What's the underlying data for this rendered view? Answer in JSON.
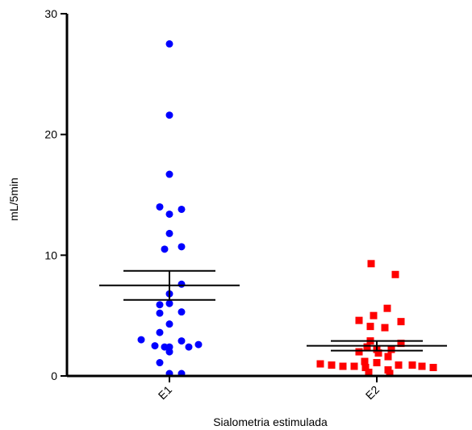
{
  "chart_data": {
    "type": "scatter",
    "xlabel": "Sialometria estimulada",
    "ylabel": "mL/5min",
    "ylim": [
      0,
      30
    ],
    "yticks": [
      0,
      10,
      20,
      30
    ],
    "categories": [
      "E1",
      "E2"
    ],
    "series": [
      {
        "category": "E1",
        "marker": "circle",
        "color": "#0000ff",
        "values": [
          27.5,
          21.6,
          16.7,
          14.0,
          13.8,
          13.4,
          11.8,
          10.7,
          10.5,
          7.6,
          6.8,
          6.0,
          5.9,
          5.3,
          5.2,
          4.3,
          3.6,
          3.0,
          2.9,
          2.6,
          2.5,
          2.4,
          2.4,
          2.4,
          2.0,
          1.1,
          0.2,
          0.2
        ],
        "mean": 7.5,
        "sem_low": 6.3,
        "sem_high": 8.7
      },
      {
        "category": "E2",
        "marker": "square",
        "color": "#ff0000",
        "values": [
          9.3,
          8.4,
          5.6,
          5.0,
          4.6,
          4.5,
          4.1,
          4.0,
          2.9,
          2.7,
          2.4,
          2.2,
          2.2,
          2.0,
          1.9,
          1.6,
          1.2,
          1.1,
          1.0,
          0.9,
          0.9,
          0.9,
          0.8,
          0.8,
          0.8,
          0.7,
          0.7,
          0.5,
          0.3,
          0.2
        ],
        "mean": 2.5,
        "sem_low": 2.1,
        "sem_high": 2.9
      }
    ]
  }
}
